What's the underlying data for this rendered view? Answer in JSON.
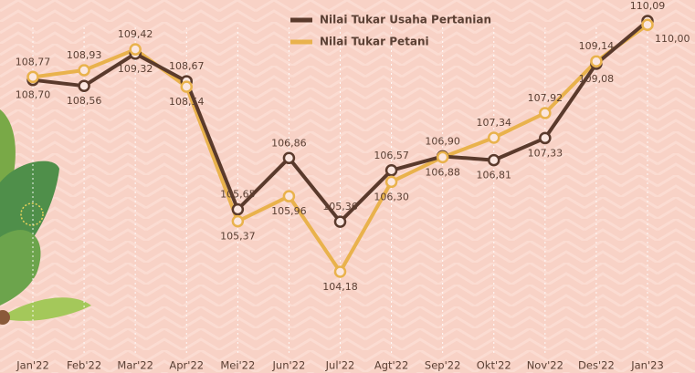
{
  "chart_data": {
    "type": "line",
    "categories": [
      "Jan'22",
      "Feb'22",
      "Mar'22",
      "Apr'22",
      "Mei'22",
      "Jun'22",
      "Jul'22",
      "Agt'22",
      "Sep'22",
      "Okt'22",
      "Nov'22",
      "Des'22",
      "Jan'23"
    ],
    "series": [
      {
        "name": "Nilai Tukar Usaha Pertanian",
        "color": "#5a3a2c",
        "values": [
          108.7,
          108.56,
          109.32,
          108.67,
          105.65,
          106.86,
          105.36,
          106.57,
          106.9,
          106.81,
          107.33,
          109.08,
          110.09
        ],
        "value_labels": [
          "108,70",
          "108,56",
          "109,32",
          "108,67",
          "105,65",
          "106,86",
          "105,36",
          "106,57",
          "106,90",
          "106,81",
          "107,33",
          "109,08",
          "110,09"
        ]
      },
      {
        "name": "Nilai Tukar Petani",
        "color": "#e9b24c",
        "values": [
          108.77,
          108.93,
          109.42,
          108.54,
          105.37,
          105.96,
          104.18,
          106.3,
          106.88,
          107.34,
          107.92,
          109.14,
          110.0
        ],
        "value_labels": [
          "108,77",
          "108,93",
          "109,42",
          "108,54",
          "105,37",
          "105,96",
          "104,18",
          "106,30",
          "106,88",
          "107,34",
          "107,92",
          "109,14",
          "110,00"
        ]
      }
    ],
    "grid": true
  }
}
